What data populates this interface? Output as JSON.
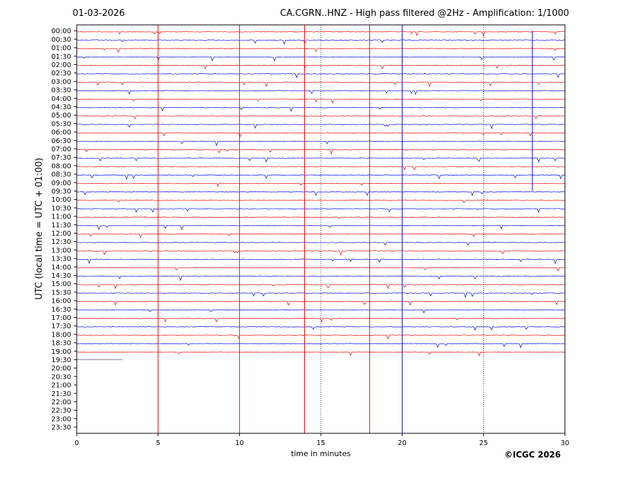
{
  "header": {
    "date": "01-03-2026",
    "title": "CA.CGRN..HNZ - High pass filtered @2Hz - Amplification: 1/1000"
  },
  "footer": {
    "copyright": "©ICGC 2026"
  },
  "chart_data": {
    "type": "helicorder",
    "xlabel": "time in minutes",
    "ylabel": "UTC (local time = UTC + 01:00)",
    "xlim": [
      0,
      30
    ],
    "x_ticks": [
      0,
      5,
      10,
      15,
      20,
      25,
      30
    ],
    "rows": [
      "00:00",
      "00:30",
      "01:00",
      "01:30",
      "02:00",
      "02:30",
      "03:00",
      "03:30",
      "04:00",
      "04:30",
      "05:00",
      "05:30",
      "06:00",
      "06:30",
      "07:00",
      "07:30",
      "08:00",
      "08:30",
      "09:00",
      "09:30",
      "10:00",
      "10:30",
      "11:00",
      "11:30",
      "12:00",
      "12:30",
      "13:00",
      "13:30",
      "14:00",
      "14:30",
      "15:00",
      "15:30",
      "16:00",
      "16:30",
      "17:00",
      "17:30",
      "18:00",
      "18:30",
      "19:00",
      "19:30",
      "20:00",
      "20:30",
      "21:00",
      "21:30",
      "22:00",
      "22:30",
      "23:00",
      "23:30"
    ],
    "trace_colors": [
      "#ff0000",
      "#0000ff"
    ],
    "last_trace": {
      "row": "19:30",
      "end_minute": 2.8,
      "color": "#808080"
    },
    "vertical_lines": [
      {
        "minute": 5.0,
        "color": "#ff0000",
        "style": "solid"
      },
      {
        "minute": 10.0,
        "color": "#ff0000",
        "style": "solid"
      },
      {
        "minute": 14.0,
        "color": "#ff0000",
        "style": "solid"
      },
      {
        "minute": 15.0,
        "color": "#000000",
        "style": "dotted"
      },
      {
        "minute": 18.0,
        "color": "#ff0000",
        "style": "solid"
      },
      {
        "minute": 20.0,
        "color": "#0000ff",
        "style": "solid"
      },
      {
        "minute": 25.0,
        "color": "#000000",
        "style": "dotted"
      },
      {
        "minute": 28.0,
        "color": "#0000ff",
        "style": "solid",
        "from_row": "00:00",
        "to_row": "09:30"
      }
    ]
  }
}
